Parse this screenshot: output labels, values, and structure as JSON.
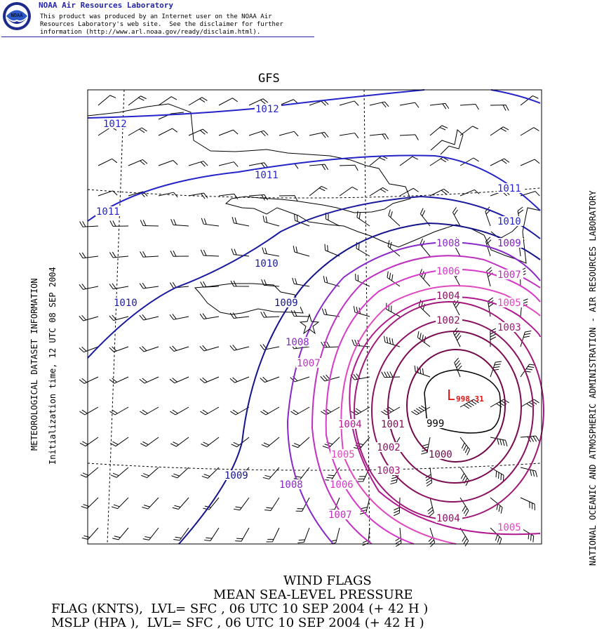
{
  "header": {
    "lab_name": "NOAA Air Resources Laboratory",
    "logo_text": "NOAA",
    "disclaimer_lines": [
      "This product was produced by an Internet user on the NOAA Air",
      "Resources Laboratory's web site.  See the disclaimer for further",
      "information (http://www.arl.noaa.gov/ready/disclaim.html)."
    ]
  },
  "map": {
    "model": "GFS",
    "isobar_labels": [
      {
        "text": "1012",
        "color": "#2424c8"
      },
      {
        "text": "1012",
        "color": "#2424c8"
      },
      {
        "text": "1011",
        "color": "#2424c8"
      },
      {
        "text": "1011",
        "color": "#2424c8"
      },
      {
        "text": "1011",
        "color": "#2424c8"
      },
      {
        "text": "1010",
        "color": "#2424c8"
      },
      {
        "text": "1010",
        "color": "#1a1aa0"
      },
      {
        "text": "1010",
        "color": "#1a1aa0"
      },
      {
        "text": "1009",
        "color": "#14148c"
      },
      {
        "text": "1009",
        "color": "#8020c0"
      },
      {
        "text": "1009",
        "color": "#14148c"
      },
      {
        "text": "1008",
        "color": "#8828c8"
      },
      {
        "text": "1008",
        "color": "#8828c8"
      },
      {
        "text": "1008",
        "color": "#8828c8"
      },
      {
        "text": "1007",
        "color": "#c030c0"
      },
      {
        "text": "1007",
        "color": "#c030c0"
      },
      {
        "text": "1007",
        "color": "#c030c0"
      },
      {
        "text": "1006",
        "color": "#d838c8"
      },
      {
        "text": "1006",
        "color": "#d838c8"
      },
      {
        "text": "1005",
        "color": "#e048c0"
      },
      {
        "text": "1005",
        "color": "#e048c0"
      },
      {
        "text": "1005",
        "color": "#e048c0"
      },
      {
        "text": "1004",
        "color": "#8a1060"
      },
      {
        "text": "1004",
        "color": "#b01890"
      },
      {
        "text": "1004",
        "color": "#8a1060"
      },
      {
        "text": "1003",
        "color": "#a01878"
      },
      {
        "text": "1003",
        "color": "#a01878"
      },
      {
        "text": "1002",
        "color": "#8a1060"
      },
      {
        "text": "1002",
        "color": "#8a1060"
      },
      {
        "text": "1001",
        "color": "#7a0c50"
      },
      {
        "text": "1000",
        "color": "#700848"
      },
      {
        "text": "999",
        "color": "#000000"
      }
    ],
    "low_center": {
      "symbol": "L",
      "value": "998.31",
      "color": "#e01010"
    }
  },
  "side_labels": {
    "left_1": "METEOROLOGICAL DATASET INFORMATION",
    "left_2": "Initialization time, 12 UTC 08 SEP 2004",
    "right": "NATIONAL OCEANIC AND ATMOSPHERIC ADMINISTRATION - AIR RESOURCES LABORATORY"
  },
  "footer": {
    "line1": "WIND FLAGS",
    "line2": "MEAN SEA-LEVEL PRESSURE",
    "line3": "FLAG (KNTS),  LVL= SFC , 06 UTC 10 SEP 2004 (+ 42 H )",
    "line4": "MSLP (HPA ),  LVL= SFC , 06 UTC 10 SEP 2004 (+ 42 H )"
  }
}
